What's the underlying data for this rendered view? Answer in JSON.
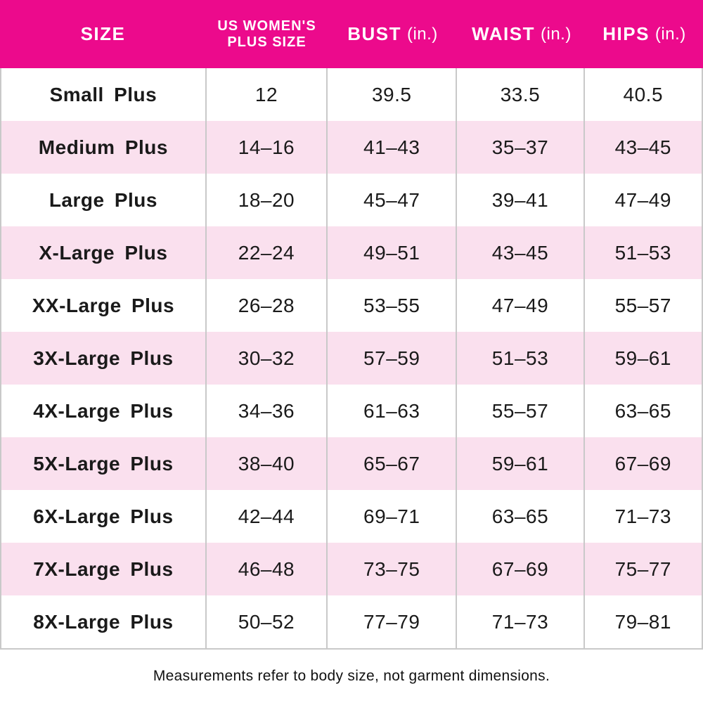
{
  "chart_data": {
    "type": "table",
    "title": "",
    "columns": [
      "SIZE",
      "US WOMEN'S PLUS SIZE",
      "BUST (in.)",
      "WAIST (in.)",
      "HIPS (in.)"
    ],
    "rows": [
      [
        "Small Plus",
        "12",
        "39.5",
        "33.5",
        "40.5"
      ],
      [
        "Medium Plus",
        "14–16",
        "41–43",
        "35–37",
        "43–45"
      ],
      [
        "Large Plus",
        "18–20",
        "45–47",
        "39–41",
        "47–49"
      ],
      [
        "X-Large Plus",
        "22–24",
        "49–51",
        "43–45",
        "51–53"
      ],
      [
        "XX-Large Plus",
        "26–28",
        "53–55",
        "47–49",
        "55–57"
      ],
      [
        "3X-Large Plus",
        "30–32",
        "57–59",
        "51–53",
        "59–61"
      ],
      [
        "4X-Large Plus",
        "34–36",
        "61–63",
        "55–57",
        "63–65"
      ],
      [
        "5X-Large Plus",
        "38–40",
        "65–67",
        "59–61",
        "67–69"
      ],
      [
        "6X-Large Plus",
        "42–44",
        "69–71",
        "63–65",
        "71–73"
      ],
      [
        "7X-Large Plus",
        "46–48",
        "73–75",
        "67–69",
        "75–77"
      ],
      [
        "8X-Large Plus",
        "50–52",
        "77–79",
        "71–73",
        "79–81"
      ]
    ],
    "footnote": "Measurements refer to body size, not garment dimensions.",
    "layout_hints": {
      "header_position": "top",
      "alternating_rows": true,
      "grid": "vertical-dividers-only"
    }
  },
  "header_display": {
    "size": "SIZE",
    "us_line1": "US WOMEN'S",
    "us_line2": "PLUS SIZE",
    "bust": "BUST",
    "waist": "WAIST",
    "hips": "HIPS",
    "unit": "(in.)"
  },
  "colors": {
    "header_bg": "#EC0A8C",
    "header_text": "#FFFFFF",
    "row_alt_bg": "#FAE0EE",
    "divider": "#C9C9C9",
    "body_text": "#1A1A1A"
  }
}
